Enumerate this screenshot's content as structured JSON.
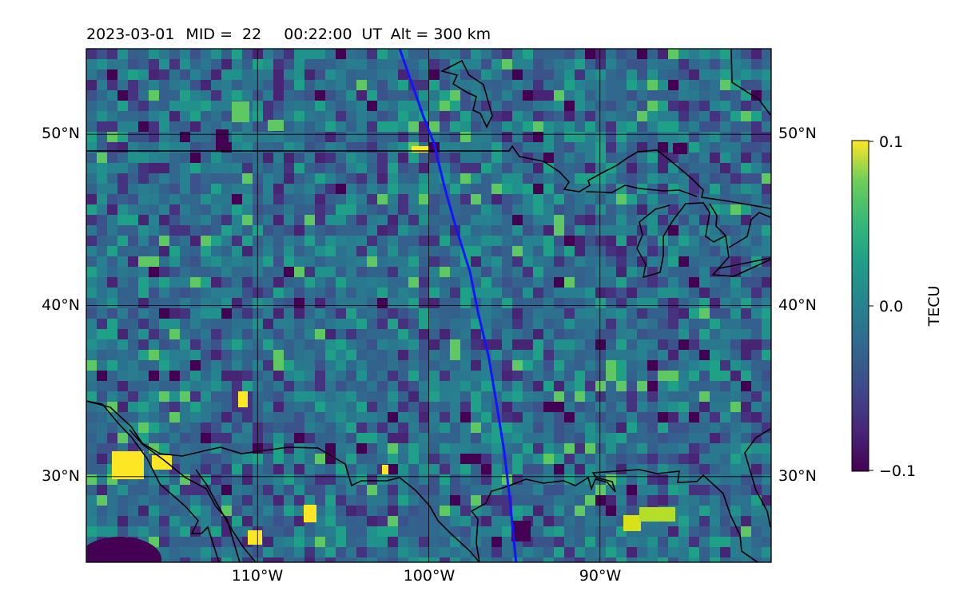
{
  "title": {
    "date": "2023-03-01",
    "mid_label": "MID =",
    "mid_value": "22",
    "time": "00:22:00",
    "time_unit": "UT",
    "altitude": "Alt = 300 km"
  },
  "map": {
    "lon_range": [
      -120,
      -80
    ],
    "lat_range": [
      25,
      55
    ],
    "lat_ticks": [
      {
        "value": 50,
        "label": "50°N"
      },
      {
        "value": 40,
        "label": "40°N"
      },
      {
        "value": 30,
        "label": "30°N"
      }
    ],
    "lon_ticks": [
      {
        "value": -110,
        "label": "110°W"
      },
      {
        "value": -100,
        "label": "100°W"
      },
      {
        "value": -90,
        "label": "90°W"
      }
    ],
    "grid": true,
    "track_color": "#1414ff",
    "coastline_color": "#000000",
    "track_lonlat": [
      [
        -101.7,
        55.0
      ],
      [
        -101.0,
        53.0
      ],
      [
        -100.3,
        51.0
      ],
      [
        -99.7,
        49.5
      ],
      [
        -99.1,
        47.0
      ],
      [
        -98.4,
        44.5
      ],
      [
        -97.6,
        42.0
      ],
      [
        -97.1,
        39.5
      ],
      [
        -96.5,
        37.0
      ],
      [
        -96.0,
        34.0
      ],
      [
        -95.6,
        31.5
      ],
      [
        -95.3,
        29.0
      ],
      [
        -95.1,
        27.0
      ],
      [
        -94.9,
        25.0
      ]
    ]
  },
  "colorbar": {
    "label": "TECU",
    "min": -0.1,
    "max": 0.1,
    "ticks": [
      {
        "value": 0.1,
        "label": "0.1"
      },
      {
        "value": 0.0,
        "label": "0.0"
      },
      {
        "value": -0.1,
        "label": "−0.1"
      }
    ],
    "colormap": "viridis"
  }
}
